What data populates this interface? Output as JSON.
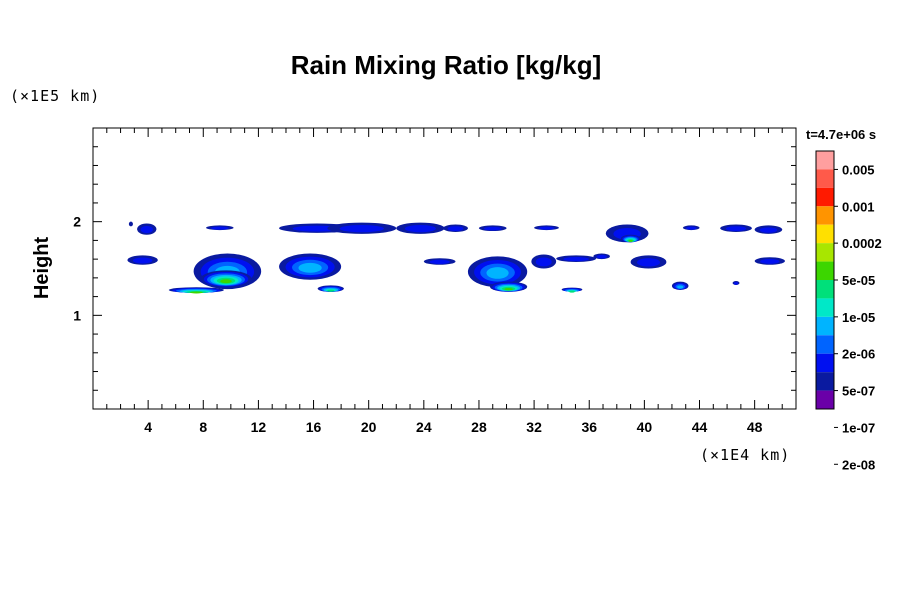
{
  "chart_data": {
    "type": "heatmap",
    "title": "Rain Mixing Ratio [kg/kg]",
    "ylabel": "Height",
    "xlabel": "",
    "x_scale_label": "(×1E4 km)",
    "y_scale_label": "(×1E5 km)",
    "time_label": "t=4.7e+06 s",
    "xlim": [
      0,
      51
    ],
    "ylim": [
      0,
      3
    ],
    "x_ticks": [
      4,
      8,
      12,
      16,
      20,
      24,
      28,
      32,
      36,
      40,
      44,
      48
    ],
    "y_ticks": [
      1,
      2
    ],
    "colorbar": {
      "labels": [
        "0.005",
        "0.001",
        "0.0002",
        "5e-05",
        "1e-05",
        "2e-06",
        "5e-07",
        "1e-07",
        "2e-08"
      ],
      "colors": [
        "#ff9f9f",
        "#ff5a4a",
        "#ff1a00",
        "#ff9400",
        "#ffe000",
        "#a8e600",
        "#3cd600",
        "#00e07a",
        "#00e8c8",
        "#00b4ff",
        "#0064ff",
        "#0010f0",
        "#0a1aa0",
        "#6a00a8"
      ]
    },
    "regions": [
      {
        "x": [
          2.5,
          4.7
        ],
        "y": [
          1.54,
          1.64
        ],
        "level": "1e-07"
      },
      {
        "x": [
          3.2,
          4.6
        ],
        "y": [
          1.86,
          1.98
        ],
        "level": "1e-07"
      },
      {
        "x": [
          2.6,
          2.9
        ],
        "y": [
          1.95,
          2.0
        ],
        "level": "2e-08"
      },
      {
        "x": [
          8.2,
          10.2
        ],
        "y": [
          1.91,
          1.96
        ],
        "level": "1e-07"
      },
      {
        "x": [
          5.5,
          9.5
        ],
        "y": [
          1.24,
          1.3
        ],
        "level": "1e-05"
      },
      {
        "x": [
          7.3,
          12.2
        ],
        "y": [
          1.28,
          1.66
        ],
        "level": "5e-07"
      },
      {
        "x": [
          7.8,
          11.5
        ],
        "y": [
          1.3,
          1.48
        ],
        "level": "1e-05"
      },
      {
        "x": [
          13.5,
          18.0
        ],
        "y": [
          1.38,
          1.66
        ],
        "level": "5e-07"
      },
      {
        "x": [
          16.3,
          18.2
        ],
        "y": [
          1.25,
          1.32
        ],
        "level": "2e-06"
      },
      {
        "x": [
          13.5,
          19.0
        ],
        "y": [
          1.88,
          1.98
        ],
        "level": "1e-07"
      },
      {
        "x": [
          17.0,
          22.0
        ],
        "y": [
          1.87,
          1.99
        ],
        "level": "1e-07"
      },
      {
        "x": [
          22.0,
          25.5
        ],
        "y": [
          1.87,
          1.99
        ],
        "level": "1e-07"
      },
      {
        "x": [
          25.4,
          27.2
        ],
        "y": [
          1.89,
          1.97
        ],
        "level": "1e-07"
      },
      {
        "x": [
          28.0,
          30.0
        ],
        "y": [
          1.9,
          1.96
        ],
        "level": "1e-07"
      },
      {
        "x": [
          32.0,
          33.8
        ],
        "y": [
          1.91,
          1.96
        ],
        "level": "1e-07"
      },
      {
        "x": [
          24.0,
          26.3
        ],
        "y": [
          1.54,
          1.61
        ],
        "level": "1e-07"
      },
      {
        "x": [
          27.2,
          31.5
        ],
        "y": [
          1.3,
          1.63
        ],
        "level": "5e-07"
      },
      {
        "x": [
          28.8,
          31.5
        ],
        "y": [
          1.25,
          1.36
        ],
        "level": "1e-05"
      },
      {
        "x": [
          31.8,
          33.6
        ],
        "y": [
          1.5,
          1.65
        ],
        "level": "1e-07"
      },
      {
        "x": [
          33.6,
          36.5
        ],
        "y": [
          1.57,
          1.64
        ],
        "level": "1e-07"
      },
      {
        "x": [
          36.3,
          37.5
        ],
        "y": [
          1.6,
          1.66
        ],
        "level": "1e-07"
      },
      {
        "x": [
          34.0,
          35.5
        ],
        "y": [
          1.26,
          1.29
        ],
        "level": "2e-06"
      },
      {
        "x": [
          37.2,
          40.3
        ],
        "y": [
          1.78,
          1.97
        ],
        "level": "1e-07"
      },
      {
        "x": [
          38.3,
          39.7
        ],
        "y": [
          1.78,
          1.86
        ],
        "level": "1e-05"
      },
      {
        "x": [
          39.0,
          41.6
        ],
        "y": [
          1.5,
          1.64
        ],
        "level": "1e-07"
      },
      {
        "x": [
          42.0,
          43.2
        ],
        "y": [
          1.27,
          1.36
        ],
        "level": "5e-07"
      },
      {
        "x": [
          42.8,
          44.0
        ],
        "y": [
          1.91,
          1.96
        ],
        "level": "1e-07"
      },
      {
        "x": [
          45.5,
          47.8
        ],
        "y": [
          1.89,
          1.97
        ],
        "level": "1e-07"
      },
      {
        "x": [
          46.4,
          46.9
        ],
        "y": [
          1.33,
          1.36
        ],
        "level": "1e-07"
      },
      {
        "x": [
          48.0,
          50.0
        ],
        "y": [
          1.87,
          1.96
        ],
        "level": "1e-07"
      },
      {
        "x": [
          48.0,
          50.2
        ],
        "y": [
          1.54,
          1.62
        ],
        "level": "1e-07"
      }
    ]
  }
}
